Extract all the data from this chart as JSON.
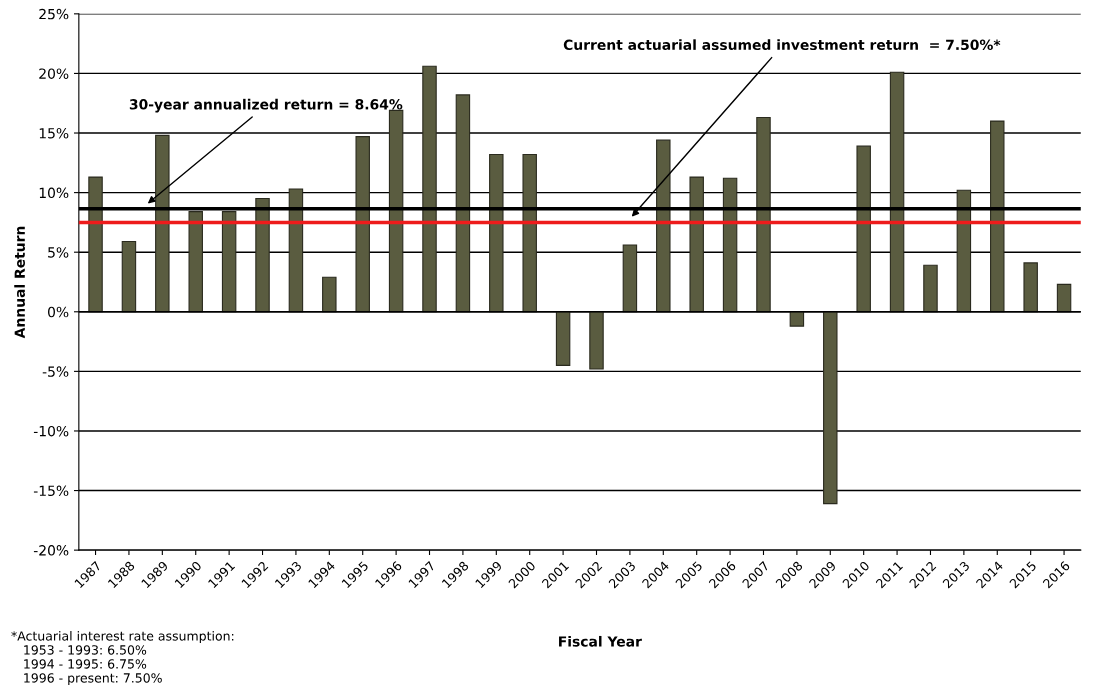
{
  "chart_data": {
    "type": "bar",
    "xlabel": "Fiscal Year",
    "ylabel": "Annual Return",
    "categories": [
      "1987",
      "1988",
      "1989",
      "1990",
      "1991",
      "1992",
      "1993",
      "1994",
      "1995",
      "1996",
      "1997",
      "1998",
      "1999",
      "2000",
      "2001",
      "2002",
      "2003",
      "2004",
      "2005",
      "2006",
      "2007",
      "2008",
      "2009",
      "2010",
      "2011",
      "2012",
      "2013",
      "2014",
      "2015",
      "2016"
    ],
    "values": [
      11.3,
      5.9,
      14.8,
      8.4,
      8.4,
      9.5,
      10.3,
      2.9,
      14.7,
      16.9,
      20.6,
      18.2,
      13.2,
      13.2,
      -4.5,
      -4.8,
      5.6,
      14.4,
      11.3,
      11.2,
      16.3,
      -1.2,
      -16.1,
      13.9,
      20.1,
      3.9,
      10.2,
      16.0,
      4.1,
      2.3
    ],
    "color": "#5a5c40",
    "ylim": [
      -20,
      25
    ],
    "yticks": [
      {
        "value": -20,
        "label": "-20%"
      },
      {
        "value": -15,
        "label": "-15%"
      },
      {
        "value": -10,
        "label": "-10%"
      },
      {
        "value": -5,
        "label": "-5%"
      },
      {
        "value": 0,
        "label": "0%"
      },
      {
        "value": 5,
        "label": "5%"
      },
      {
        "value": 10,
        "label": "10%"
      },
      {
        "value": 15,
        "label": "15%"
      },
      {
        "value": 20,
        "label": "20%"
      },
      {
        "value": 25,
        "label": "25%"
      }
    ],
    "grid": "y",
    "ref_lines": [
      {
        "axis": "y",
        "value": 8.64,
        "label": "30-year annualized return = 8.64%",
        "color": "#000000"
      },
      {
        "axis": "y",
        "value": 7.5,
        "label": "Current actuarial assumed investment return  = 7.50%*",
        "color": "#ee1c1c"
      }
    ],
    "annotations": [
      "*Actuarial interest rate assumption:\n   1953 - 1993: 6.50%\n   1994 - 1995: 6.75%\n   1996 - present: 7.50%"
    ]
  }
}
